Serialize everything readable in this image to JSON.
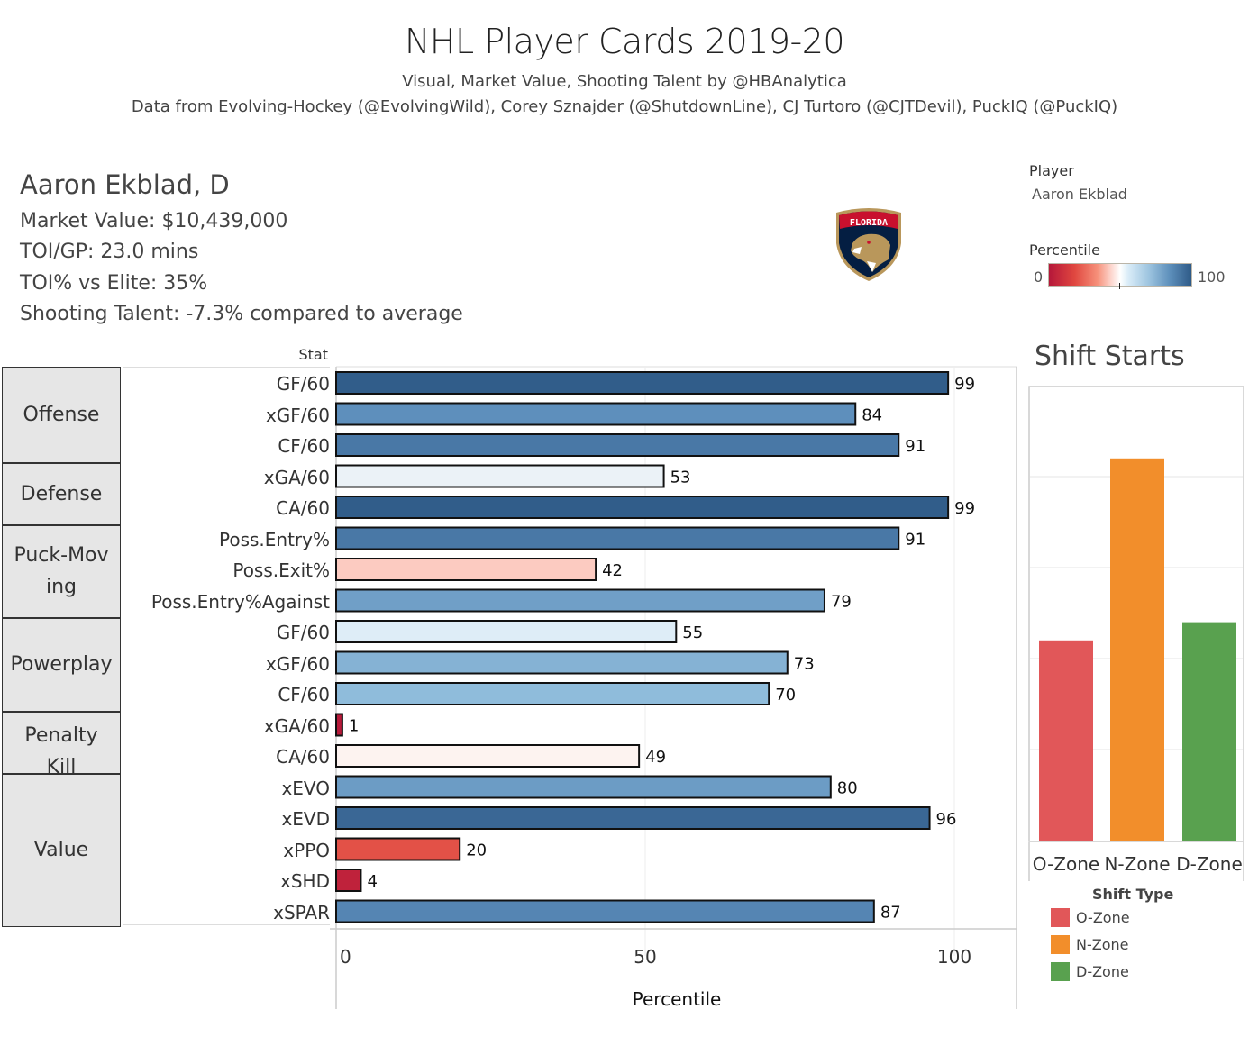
{
  "header": {
    "title": "NHL Player Cards 2019-20",
    "subtitle1": "Visual, Market Value, Shooting Talent by @HBAnalytica",
    "subtitle2": "Data from Evolving-Hockey (@EvolvingWild), Corey Sznajder (@ShutdownLine), CJ Turtoro (@CJTDevil), PuckIQ (@PuckIQ)"
  },
  "player": {
    "name_line": "Aaron Ekblad, D",
    "market_value": "Market Value: $10,439,000",
    "toi_gp": "TOI/GP: 23.0 mins",
    "toi_vs_elite": "TOI% vs Elite: 35%",
    "shooting_talent": "Shooting Talent:  -7.3% compared to average",
    "team_logo": "florida-panthers-logo",
    "team_logo_text": "FLORIDA"
  },
  "filters": {
    "player_label": "Player",
    "player_value": "Aaron Ekblad",
    "percentile_label": "Percentile",
    "percentile_min": "0",
    "percentile_max": "100"
  },
  "colors": {
    "low": "#b5173a",
    "mid": "#ffffff",
    "high": "#2e5a87",
    "o_zone": "#e15759",
    "n_zone": "#f28e2b",
    "d_zone": "#59a14f"
  },
  "chart_data": [
    {
      "type": "bar",
      "orientation": "horizontal",
      "title": "",
      "xlabel": "Percentile",
      "ylabel": "Stat",
      "xlim": [
        0,
        110
      ],
      "x_ticks": [
        "0",
        "50",
        "100"
      ],
      "grid": true,
      "groups": [
        {
          "name": "Offense",
          "stats": [
            "GF/60",
            "xGF/60",
            "CF/60"
          ]
        },
        {
          "name": "Defense",
          "stats": [
            "xGA/60",
            "CA/60"
          ]
        },
        {
          "name": "Puck-Moving",
          "stats": [
            "Poss.Entry%",
            "Poss.Exit%",
            "Poss.Entry%Against"
          ]
        },
        {
          "name": "Powerplay",
          "stats": [
            "GF/60",
            "xGF/60",
            "CF/60"
          ]
        },
        {
          "name": "Penalty Kill",
          "stats": [
            "xGA/60",
            "CA/60"
          ]
        },
        {
          "name": "Value",
          "stats": [
            "xEVO",
            "xEVD",
            "xPPO",
            "xSHD",
            "xSPAR"
          ]
        }
      ],
      "categories": [
        "GF/60",
        "xGF/60",
        "CF/60",
        "xGA/60",
        "CA/60",
        "Poss.Entry%",
        "Poss.Exit%",
        "Poss.Entry%Against",
        "GF/60",
        "xGF/60",
        "CF/60",
        "xGA/60",
        "CA/60",
        "xEVO",
        "xEVD",
        "xPPO",
        "xSHD",
        "xSPAR"
      ],
      "values": [
        99,
        84,
        91,
        53,
        99,
        91,
        42,
        79,
        55,
        73,
        70,
        1,
        49,
        80,
        96,
        20,
        4,
        87
      ],
      "color_legend": "Percentile (diverging red-white-blue, 0 to 100)"
    },
    {
      "type": "bar",
      "title": "Shift Starts",
      "xlabel": "",
      "ylabel": "",
      "categories": [
        "O-Zone",
        "N-Zone",
        "D-Zone"
      ],
      "values": [
        0.22,
        0.42,
        0.24
      ],
      "grid": true,
      "legend": {
        "title": "Shift Type",
        "entries": [
          "O-Zone",
          "N-Zone",
          "D-Zone"
        ],
        "placement": "bottom"
      }
    }
  ]
}
